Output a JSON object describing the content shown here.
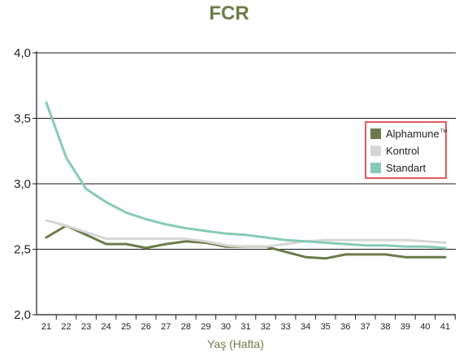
{
  "colors": {
    "title": "#6e7b4b",
    "xlabel": "#6e7b4b",
    "legend_border": "#d9252e",
    "axis": "#1a1a1a",
    "grid": "#1a1a1a"
  },
  "chart_data": {
    "type": "line",
    "title": "FCR",
    "xlabel": "Yaş (Hafta)",
    "ylabel": "",
    "x": [
      21,
      22,
      23,
      24,
      25,
      26,
      27,
      28,
      29,
      30,
      31,
      32,
      33,
      34,
      35,
      36,
      37,
      38,
      39,
      40,
      41
    ],
    "xticks": [
      "21",
      "22",
      "23",
      "24",
      "25",
      "26",
      "27",
      "28",
      "29",
      "30",
      "31",
      "32",
      "33",
      "34",
      "35",
      "36",
      "37",
      "38",
      "39",
      "40",
      "41"
    ],
    "ylim": [
      2.0,
      4.0
    ],
    "yticks": [
      {
        "value": 2.0,
        "label": "2,0"
      },
      {
        "value": 2.5,
        "label": "2,5"
      },
      {
        "value": 3.0,
        "label": "3,0"
      },
      {
        "value": 3.5,
        "label": "3,5"
      },
      {
        "value": 4.0,
        "label": "4,0"
      }
    ],
    "grid": "horizontal",
    "legend_position": "right",
    "series": [
      {
        "name": "Alphamune",
        "name_mark": "TM",
        "color": "#6c7a4a",
        "values": [
          2.59,
          2.68,
          2.61,
          2.54,
          2.54,
          2.51,
          2.54,
          2.56,
          2.55,
          2.52,
          2.52,
          2.52,
          2.48,
          2.44,
          2.43,
          2.46,
          2.46,
          2.46,
          2.44,
          2.44,
          2.44
        ]
      },
      {
        "name": "Kontrol",
        "color": "#d5d7d4",
        "values": [
          2.72,
          2.68,
          2.63,
          2.58,
          2.58,
          2.58,
          2.58,
          2.58,
          2.56,
          2.53,
          2.52,
          2.52,
          2.54,
          2.56,
          2.57,
          2.57,
          2.57,
          2.57,
          2.57,
          2.56,
          2.55
        ]
      },
      {
        "name": "Standart",
        "color": "#86cbb7",
        "values": [
          3.62,
          3.2,
          2.96,
          2.86,
          2.78,
          2.73,
          2.69,
          2.66,
          2.64,
          2.62,
          2.61,
          2.59,
          2.57,
          2.56,
          2.55,
          2.54,
          2.53,
          2.53,
          2.52,
          2.52,
          2.51
        ]
      }
    ]
  }
}
